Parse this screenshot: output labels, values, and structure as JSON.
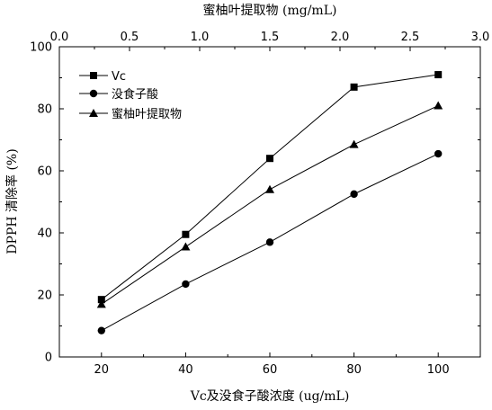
{
  "chart_data": {
    "type": "line",
    "x_label": "Vc及没食子酸浓度 (ug/mL)",
    "x_ticks": [
      20,
      40,
      60,
      80,
      100
    ],
    "xlim": [
      10,
      110
    ],
    "x2_label": "蜜柚叶提取物 (mg/mL)",
    "x2_ticks": [
      "0.0",
      "0.5",
      "1.0",
      "1.5",
      "2.0",
      "2.5",
      "3.0"
    ],
    "x2lim": [
      0,
      3
    ],
    "y_label": "DPPH 清除率 (%)",
    "y_ticks": [
      0,
      20,
      40,
      60,
      80,
      100
    ],
    "ylim": [
      0,
      100
    ],
    "legend_position": "top-left",
    "series": [
      {
        "name": "Vc",
        "axis": "bottom",
        "marker": "square",
        "x": [
          20,
          40,
          60,
          80,
          100
        ],
        "y": [
          18.5,
          39.5,
          64,
          87,
          91
        ]
      },
      {
        "name": "没食子酸",
        "axis": "bottom",
        "marker": "circle",
        "x": [
          20,
          40,
          60,
          80,
          100
        ],
        "y": [
          8.5,
          23.5,
          37,
          52.5,
          65.5
        ]
      },
      {
        "name": "蜜柚叶提取物",
        "axis": "top",
        "marker": "triangle",
        "x": [
          0.3,
          0.9,
          1.5,
          2.1,
          2.7
        ],
        "y": [
          17,
          35.5,
          54,
          68.5,
          81
        ]
      }
    ]
  }
}
